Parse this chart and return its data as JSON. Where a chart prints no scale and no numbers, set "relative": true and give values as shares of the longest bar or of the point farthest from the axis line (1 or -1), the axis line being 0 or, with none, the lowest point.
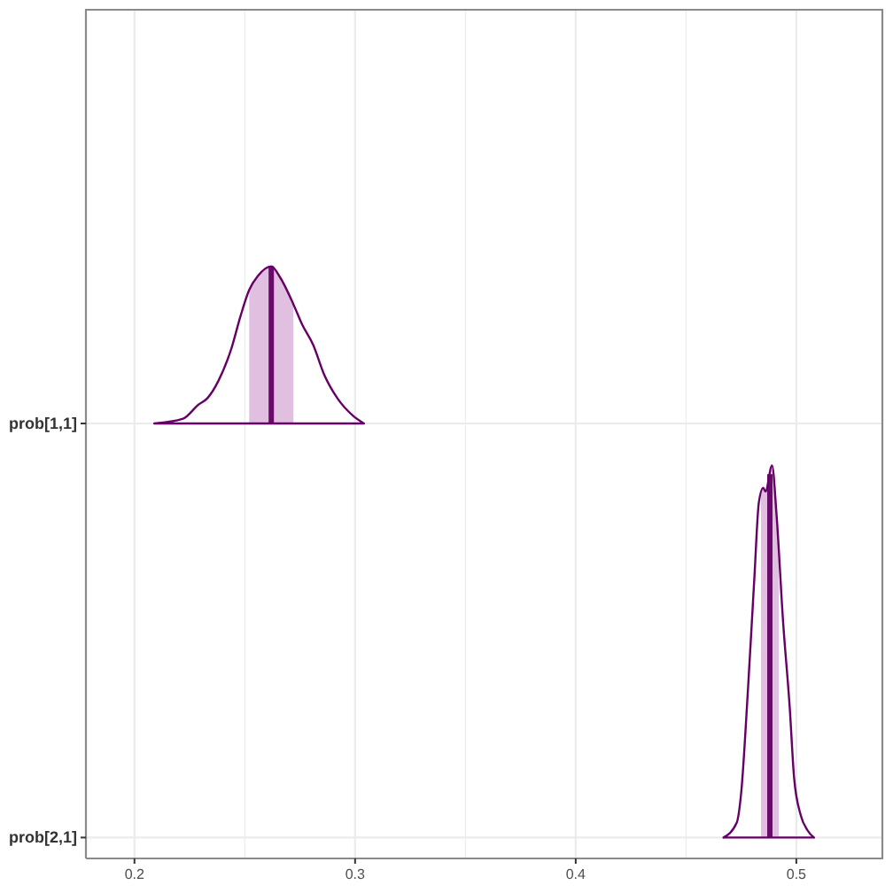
{
  "chart_data": [
    {
      "type": "line",
      "relative": true,
      "ylabel": "prob[1,1]",
      "tick_labels": false,
      "grid": true,
      "xlim": [
        0.178,
        0.539
      ],
      "xticks": [
        0.2,
        {
          "value": 0.25,
          "label": null
        },
        0.3,
        {
          "value": 0.35,
          "label": null
        },
        0.4,
        {
          "value": 0.45,
          "label": null
        },
        0.5
      ],
      "series": [
        {
          "color": "#660066",
          "x": [
            0.209,
            0.222,
            0.229,
            0.233,
            0.238,
            0.244,
            0.248,
            0.252,
            0.256,
            0.262,
            0.266,
            0.272,
            0.276,
            0.281,
            0.286,
            0.292,
            0.299,
            0.304
          ],
          "values": [
            0,
            0.03,
            0.12,
            0.16,
            0.27,
            0.48,
            0.68,
            0.85,
            0.94,
            1,
            0.93,
            0.76,
            0.63,
            0.5,
            0.31,
            0.16,
            0.05,
            0
          ]
        },
        {
          "type": "area",
          "color": "#e0bfe0",
          "x": [
            0.252,
            0.256,
            0.262,
            0.266,
            0.272
          ],
          "values": [
            0.85,
            0.94,
            1,
            0.93,
            0.76
          ]
        }
      ],
      "ref_lines": [
        {
          "axis": "x",
          "value": 0.262,
          "color": "#6a0a6a"
        }
      ]
    },
    {
      "type": "line",
      "relative": true,
      "ylabel": "prob[2,1]",
      "grid": true,
      "xlim": [
        0.178,
        0.539
      ],
      "xticks": [
        0.2,
        {
          "value": 0.25,
          "label": null
        },
        0.3,
        {
          "value": 0.35,
          "label": null
        },
        0.4,
        {
          "value": 0.45,
          "label": null
        },
        0.5
      ],
      "series": [
        {
          "color": "#660066",
          "x": [
            0.467,
            0.473,
            0.475,
            0.478,
            0.481,
            0.483,
            0.485,
            0.486,
            0.489,
            0.491,
            0.494,
            0.497,
            0.499,
            0.502,
            0.505,
            0.508
          ],
          "values": [
            0,
            0.04,
            0.12,
            0.39,
            0.7,
            0.9,
            0.94,
            0.93,
            1,
            0.87,
            0.58,
            0.35,
            0.16,
            0.06,
            0.02,
            0
          ]
        },
        {
          "type": "area",
          "color": "#e0bfe0",
          "x": [
            0.484,
            0.485,
            0.486,
            0.489,
            0.492
          ],
          "values": [
            0.92,
            0.94,
            0.93,
            1,
            0.82
          ]
        }
      ],
      "ref_lines": [
        {
          "axis": "x",
          "value": 0.488,
          "color": "#6a0a6a"
        }
      ]
    }
  ]
}
